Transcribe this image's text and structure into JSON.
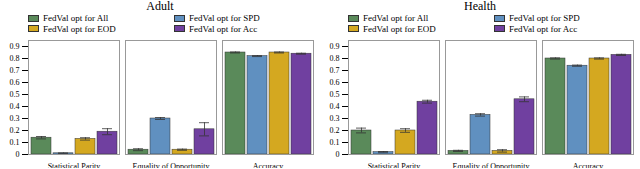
{
  "chart_data": [
    {
      "type": "bar",
      "title": "Adult",
      "categories": [
        "Statistical Parity",
        "Equality of Opportunity",
        "Accuracy"
      ],
      "series": [
        {
          "name": "FedVal opt for All",
          "color": "#5a8a5a",
          "values": [
            0.14,
            0.04,
            0.85
          ],
          "errors": [
            0.01,
            0.008,
            0.004
          ]
        },
        {
          "name": "FedVal opt for SPD",
          "color": "#6090c0",
          "values": [
            0.01,
            0.3,
            0.82
          ],
          "errors": [
            0.003,
            0.008,
            0.004
          ]
        },
        {
          "name": "FedVal opt for EOD",
          "color": "#d4a820",
          "values": [
            0.13,
            0.04,
            0.85
          ],
          "errors": [
            0.01,
            0.005,
            0.004
          ]
        },
        {
          "name": "FedVal opt for Acc",
          "color": "#7040a0",
          "values": [
            0.19,
            0.21,
            0.84
          ],
          "errors": [
            0.025,
            0.055,
            0.004
          ]
        }
      ],
      "ylim": [
        0,
        0.95
      ],
      "yticks": [
        0,
        0.1,
        0.2,
        0.3,
        0.4,
        0.5,
        0.6,
        0.7,
        0.8,
        0.9
      ],
      "legend": "top"
    },
    {
      "type": "bar",
      "title": "Health",
      "categories": [
        "Statistical Parity",
        "Equality of Opportunity",
        "Accuracy"
      ],
      "series": [
        {
          "name": "FedVal opt for All",
          "color": "#5a8a5a",
          "values": [
            0.2,
            0.03,
            0.8
          ],
          "errors": [
            0.02,
            0.005,
            0.005
          ]
        },
        {
          "name": "FedVal opt for SPD",
          "color": "#6090c0",
          "values": [
            0.02,
            0.33,
            0.74
          ],
          "errors": [
            0.005,
            0.01,
            0.005
          ]
        },
        {
          "name": "FedVal opt for EOD",
          "color": "#d4a820",
          "values": [
            0.2,
            0.03,
            0.8
          ],
          "errors": [
            0.015,
            0.01,
            0.005
          ]
        },
        {
          "name": "FedVal opt for Acc",
          "color": "#7040a0",
          "values": [
            0.44,
            0.46,
            0.83
          ],
          "errors": [
            0.012,
            0.02,
            0.005
          ]
        }
      ],
      "ylim": [
        0,
        0.95
      ],
      "yticks": [
        0,
        0.1,
        0.2,
        0.3,
        0.4,
        0.5,
        0.6,
        0.7,
        0.8,
        0.9
      ],
      "legend": "top"
    }
  ]
}
